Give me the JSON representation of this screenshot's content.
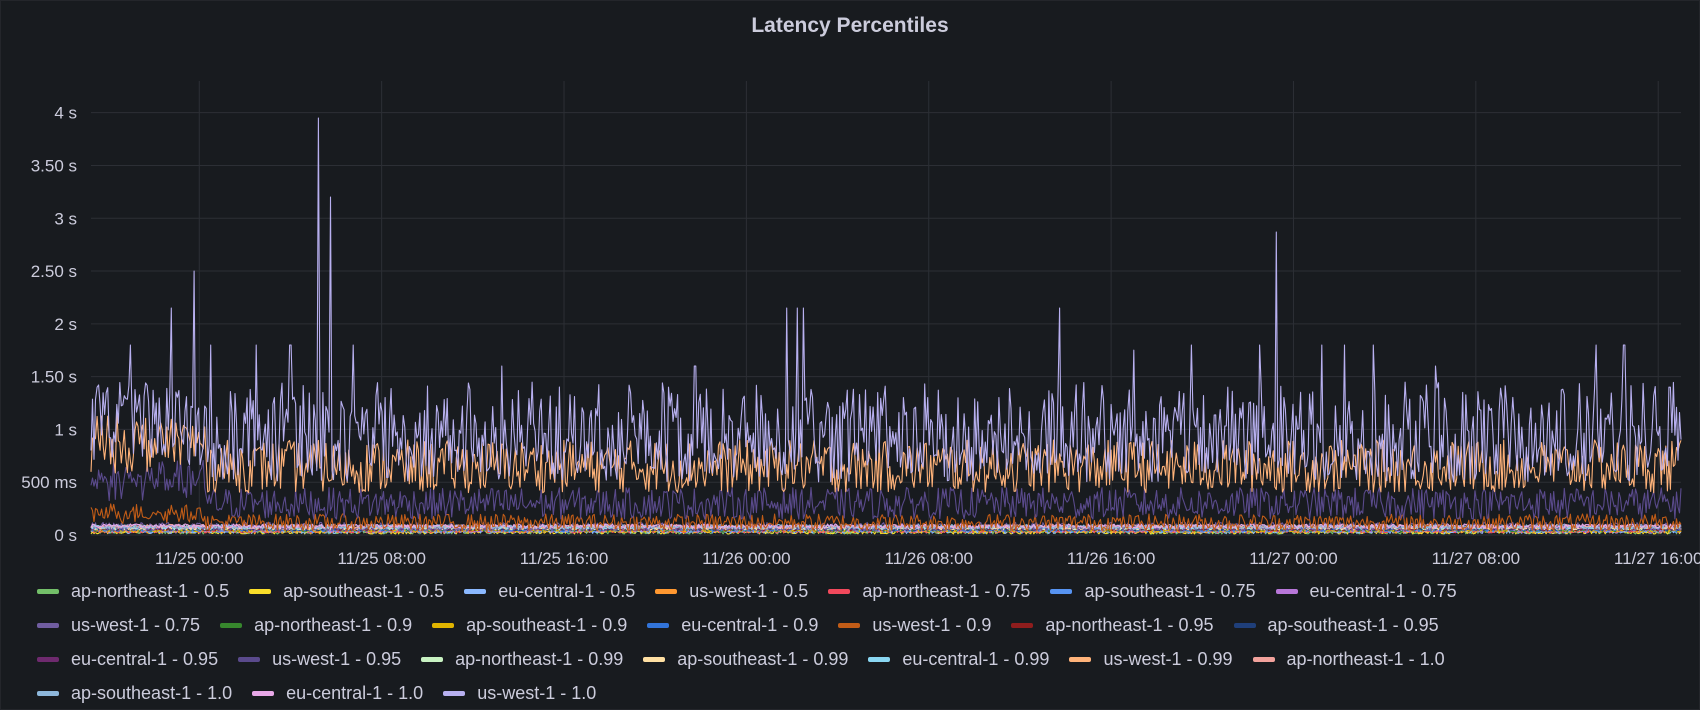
{
  "panel": {
    "title": "Latency Percentiles"
  },
  "chart_data": {
    "type": "line",
    "title": "Latency Percentiles",
    "y_unit": "seconds",
    "ylim": [
      0,
      4.3
    ],
    "y_ticks": [
      0,
      0.5,
      1,
      1.5,
      2,
      2.5,
      3,
      3.5,
      4
    ],
    "y_tick_labels": [
      "0 s",
      "500 ms",
      "1 s",
      "1.50 s",
      "2 s",
      "2.50 s",
      "3 s",
      "3.50 s",
      "4 s"
    ],
    "x_range": [
      "11/24 19:15",
      "11/27 17:00"
    ],
    "x_tick_labels": [
      "11/25 00:00",
      "11/25 08:00",
      "11/25 16:00",
      "11/26 00:00",
      "11/26 08:00",
      "11/26 16:00",
      "11/27 00:00",
      "11/27 08:00",
      "11/27 16:00"
    ],
    "grid": true,
    "legend_position": "bottom",
    "series": [
      {
        "name": "ap-northeast-1 - 0.5",
        "color": "#73bf69",
        "shape": [
          0.03,
          0.02,
          0
        ]
      },
      {
        "name": "ap-southeast-1 - 0.5",
        "color": "#fade2a",
        "shape": [
          0.03,
          0.02,
          0
        ]
      },
      {
        "name": "eu-central-1 - 0.5",
        "color": "#8ab8ff",
        "shape": [
          0.035,
          0.02,
          0
        ]
      },
      {
        "name": "us-west-1 - 0.5",
        "color": "#ff9830",
        "shape": [
          0.04,
          0.02,
          0
        ]
      },
      {
        "name": "ap-northeast-1 - 0.75",
        "color": "#f2495c",
        "shape": [
          0.04,
          0.02,
          0
        ]
      },
      {
        "name": "ap-southeast-1 - 0.75",
        "color": "#5794f2",
        "shape": [
          0.045,
          0.02,
          0
        ]
      },
      {
        "name": "eu-central-1 - 0.75",
        "color": "#b877d9",
        "shape": [
          0.05,
          0.02,
          0
        ]
      },
      {
        "name": "us-west-1 - 0.75",
        "color": "#705da0",
        "shape": [
          0.08,
          0.04,
          0
        ]
      },
      {
        "name": "ap-northeast-1 - 0.9",
        "color": "#37872d",
        "shape": [
          0.05,
          0.02,
          0
        ]
      },
      {
        "name": "ap-southeast-1 - 0.9",
        "color": "#e0b400",
        "shape": [
          0.05,
          0.02,
          0
        ]
      },
      {
        "name": "eu-central-1 - 0.9",
        "color": "#3274d9",
        "shape": [
          0.055,
          0.02,
          0
        ]
      },
      {
        "name": "us-west-1 - 0.9",
        "color": "#c15c17",
        "shape": [
          0.12,
          0.08,
          0.1
        ]
      },
      {
        "name": "ap-northeast-1 - 0.95",
        "color": "#8f1d1d",
        "shape": [
          0.06,
          0.02,
          0
        ]
      },
      {
        "name": "ap-southeast-1 - 0.95",
        "color": "#1f3f7a",
        "shape": [
          0.06,
          0.02,
          0
        ]
      },
      {
        "name": "eu-central-1 - 0.95",
        "color": "#6e2a6e",
        "shape": [
          0.065,
          0.02,
          0
        ]
      },
      {
        "name": "us-west-1 - 0.95",
        "color": "#5a4a8c",
        "shape": [
          0.3,
          0.15,
          0.25
        ]
      },
      {
        "name": "ap-northeast-1 - 0.99",
        "color": "#c8f2c2",
        "shape": [
          0.07,
          0.02,
          0
        ]
      },
      {
        "name": "ap-southeast-1 - 0.99",
        "color": "#ffe0a3",
        "shape": [
          0.07,
          0.02,
          0
        ]
      },
      {
        "name": "eu-central-1 - 0.99",
        "color": "#8ad7f2",
        "shape": [
          0.075,
          0.02,
          0
        ]
      },
      {
        "name": "us-west-1 - 0.99",
        "color": "#ffb37a",
        "shape": [
          0.65,
          0.25,
          0.25
        ]
      },
      {
        "name": "ap-northeast-1 - 1.0",
        "color": "#f2a29c",
        "shape": [
          0.08,
          0.02,
          0
        ]
      },
      {
        "name": "ap-southeast-1 - 1.0",
        "color": "#8eb8dc",
        "shape": [
          0.08,
          0.02,
          0
        ]
      },
      {
        "name": "eu-central-1 - 1.0",
        "color": "#e8a8e8",
        "shape": [
          0.085,
          0.02,
          0
        ]
      },
      {
        "name": "us-west-1 - 1.0",
        "color": "#b8b0f0",
        "shape": [
          0.85,
          0.35,
          0.2
        ]
      }
    ],
    "peaks_series": "us-west-1 - 1.0",
    "peaks": [
      {
        "x": "11/24 19:30",
        "y": 1.4
      },
      {
        "x": "11/24 21:00",
        "y": 1.8
      },
      {
        "x": "11/24 22:45",
        "y": 2.15
      },
      {
        "x": "11/24 23:45",
        "y": 2.5
      },
      {
        "x": "11/25 00:30",
        "y": 1.8
      },
      {
        "x": "11/25 02:30",
        "y": 1.8
      },
      {
        "x": "11/25 04:00",
        "y": 1.8
      },
      {
        "x": "11/25 05:15",
        "y": 3.95
      },
      {
        "x": "11/25 05:45",
        "y": 3.2
      },
      {
        "x": "11/25 06:45",
        "y": 1.8
      },
      {
        "x": "11/25 13:15",
        "y": 1.6
      },
      {
        "x": "11/25 21:45",
        "y": 1.6
      },
      {
        "x": "11/26 01:45",
        "y": 2.15
      },
      {
        "x": "11/26 02:15",
        "y": 2.15
      },
      {
        "x": "11/26 02:30",
        "y": 2.15
      },
      {
        "x": "11/26 13:45",
        "y": 2.15
      },
      {
        "x": "11/26 17:00",
        "y": 1.75
      },
      {
        "x": "11/26 19:30",
        "y": 1.8
      },
      {
        "x": "11/26 22:30",
        "y": 1.8
      },
      {
        "x": "11/26 23:15",
        "y": 2.87
      },
      {
        "x": "11/27 01:15",
        "y": 1.8
      },
      {
        "x": "11/27 02:15",
        "y": 1.8
      },
      {
        "x": "11/27 03:30",
        "y": 1.8
      },
      {
        "x": "11/27 06:15",
        "y": 1.6
      },
      {
        "x": "11/27 13:15",
        "y": 1.8
      },
      {
        "x": "11/27 14:30",
        "y": 1.8
      },
      {
        "x": "11/27 16:30",
        "y": 1.4
      }
    ]
  }
}
